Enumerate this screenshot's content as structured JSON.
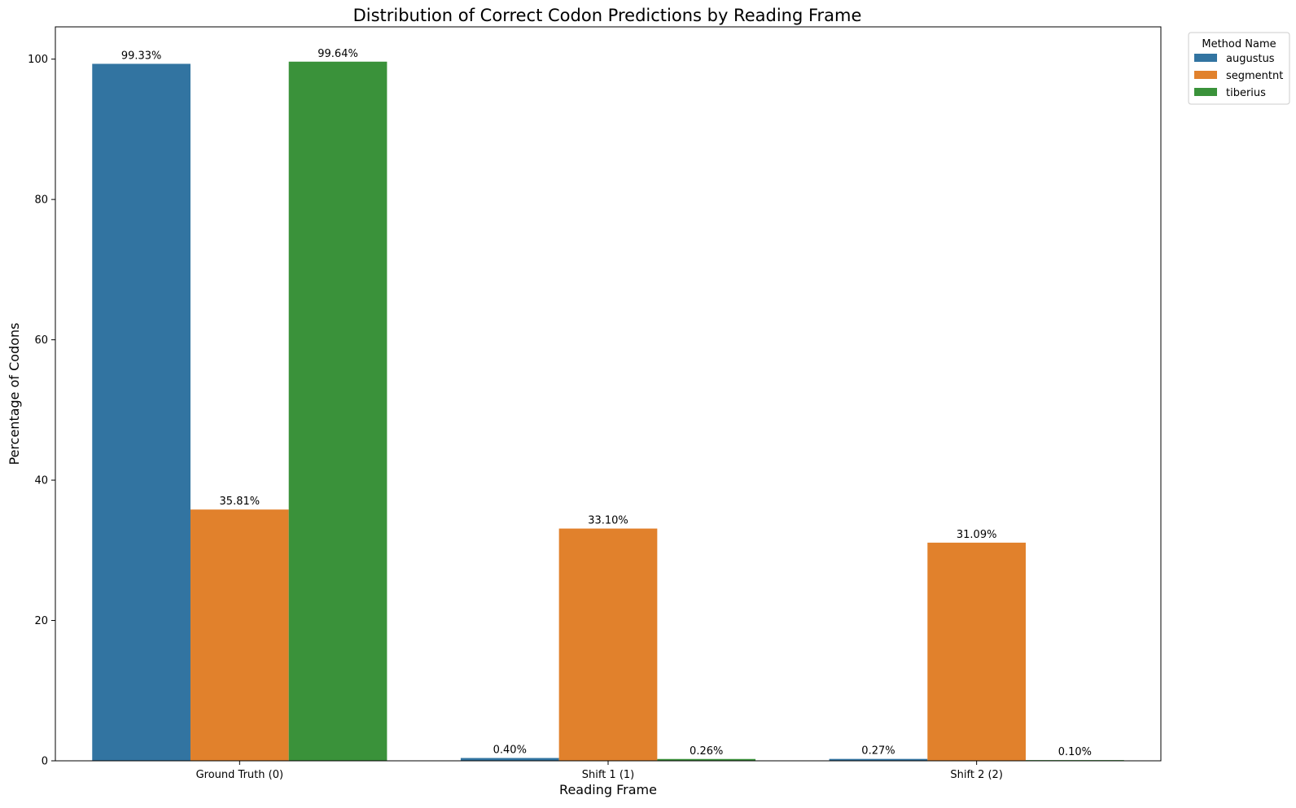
{
  "chart_data": {
    "type": "bar",
    "title": "Distribution of Correct Codon Predictions by Reading Frame",
    "xlabel": "Reading Frame",
    "ylabel": "Percentage of Codons",
    "categories": [
      "Ground Truth (0)",
      "Shift 1 (1)",
      "Shift 2 (2)"
    ],
    "ylim": [
      0,
      104.6
    ],
    "yticks": [
      0,
      20,
      40,
      60,
      80,
      100
    ],
    "grid": false,
    "legend": {
      "title": "Method Name",
      "placement": "outside top-right"
    },
    "series": [
      {
        "name": "augustus",
        "color": "#3274a1",
        "values": [
          99.33,
          0.4,
          0.27
        ],
        "labels": [
          "99.33%",
          "0.40%",
          "0.27%"
        ]
      },
      {
        "name": "segmentnt",
        "color": "#e1812c",
        "values": [
          35.81,
          33.1,
          31.09
        ],
        "labels": [
          "35.81%",
          "33.10%",
          "31.09%"
        ]
      },
      {
        "name": "tiberius",
        "color": "#3a923a",
        "values": [
          99.64,
          0.26,
          0.1
        ],
        "labels": [
          "99.64%",
          "0.26%",
          "0.10%"
        ]
      }
    ]
  }
}
